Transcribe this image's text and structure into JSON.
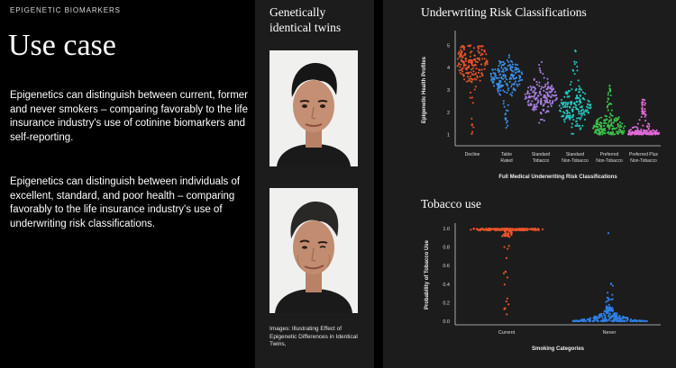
{
  "left": {
    "eyebrow": "EPIGENETIC BIOMARKERS",
    "heading": "Use case",
    "paragraph1": "Epigenetics can distinguish between current, former and never smokers – comparing favorably to the life insurance industry's use of cotinine biomarkers and self-reporting.",
    "paragraph2": "Epigenetics can distinguish between individuals of excellent, standard, and poor health – comparing favorably to the life insurance industry's use of underwriting risk classifications."
  },
  "middle": {
    "title": "Genetically identical twins",
    "caption": "Images: Illustrating Effect of Epigenetic Differences in Identical Twins,"
  },
  "colors": {
    "decline": "#e8542a",
    "table_rated": "#3b8fe8",
    "standard_tobacco": "#a77ee0",
    "standard_non_tobacco": "#24c8c0",
    "preferred_non_tobacco": "#3cc24a",
    "preferred_plus": "#e06ad8",
    "current": "#e8542a",
    "never": "#2f7fe6"
  },
  "chart_data": [
    {
      "type": "scatter",
      "title": "Underwriting Risk Classifications",
      "xlabel": "Full Medical Underwriting Risk Classifications",
      "ylabel": "Epigenetic Health Profiles",
      "ylim": [
        0.5,
        5.5
      ],
      "yticks": [
        "0",
        "1",
        "2",
        "3",
        "4",
        "5"
      ],
      "categories": [
        "Decline",
        "Table Rated",
        "Standard Tobacco",
        "Standard Non-Tobacco",
        "Preferred Non-Tobacco",
        "Preferred Plus Non-Tobacco"
      ],
      "category_labels": [
        [
          "Decline"
        ],
        [
          "Table",
          "Rated"
        ],
        [
          "Standard",
          "Tobacco"
        ],
        [
          "Standard",
          "Non-Tobacco"
        ],
        [
          "Preferred",
          "Non-Tobacco"
        ],
        [
          "Preferred Plus",
          "Non-Tobacco"
        ]
      ],
      "series": [
        {
          "category": "Decline",
          "min": 1.0,
          "max": 5.0,
          "median": 4.3,
          "color_key": "decline"
        },
        {
          "category": "Table Rated",
          "min": 1.3,
          "max": 4.6,
          "median": 3.6,
          "color_key": "table_rated"
        },
        {
          "category": "Standard Tobacco",
          "min": 1.5,
          "max": 4.6,
          "median": 2.7,
          "color_key": "standard_tobacco"
        },
        {
          "category": "Standard Non-Tobacco",
          "min": 1.0,
          "max": 4.8,
          "median": 2.2,
          "color_key": "standard_non_tobacco"
        },
        {
          "category": "Preferred Non-Tobacco",
          "min": 1.0,
          "max": 3.3,
          "median": 1.3,
          "color_key": "preferred_non_tobacco"
        },
        {
          "category": "Preferred Plus Non-Tobacco",
          "min": 1.0,
          "max": 2.7,
          "median": 1.0,
          "color_key": "preferred_plus"
        }
      ]
    },
    {
      "type": "scatter",
      "title": "Tobacco use",
      "xlabel": "Smoking Categories",
      "ylabel": "Probability of Tobacco Use",
      "ylim": [
        0.0,
        1.0
      ],
      "yticks": [
        "0.0",
        "0.2",
        "0.4",
        "0.6",
        "0.8",
        "1.0"
      ],
      "categories": [
        "Current",
        "Never"
      ],
      "series": [
        {
          "category": "Current",
          "cluster": 1.0,
          "tail_min": 0.0,
          "color_key": "current"
        },
        {
          "category": "Never",
          "cluster": 0.0,
          "tail_max": 0.95,
          "color_key": "never"
        }
      ]
    }
  ]
}
